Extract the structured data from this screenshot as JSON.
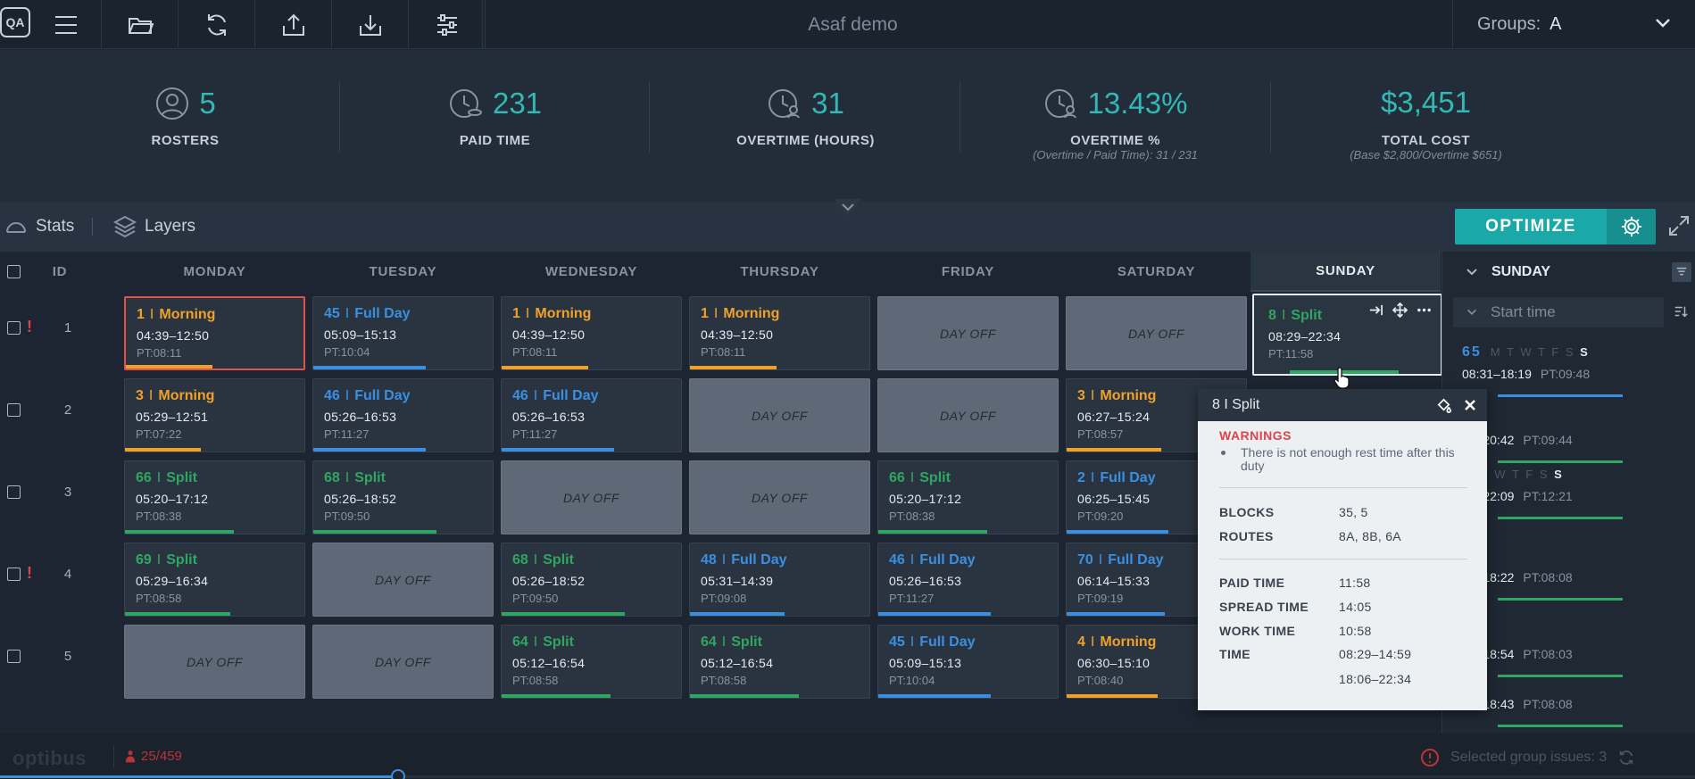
{
  "toolbar": {
    "logo": "QA",
    "title": "Asaf demo",
    "groups_label": "Groups:",
    "groups_value": "A"
  },
  "stats": [
    {
      "value": "5",
      "label": "ROSTERS",
      "sub": ""
    },
    {
      "value": "231",
      "label": "PAID TIME",
      "sub": ""
    },
    {
      "value": "31",
      "label": "OVERTIME (HOURS)",
      "sub": ""
    },
    {
      "value": "13.43%",
      "label": "OVERTIME %",
      "sub": "(Overtime / Paid Time): 31 / 231"
    },
    {
      "value": "$3,451",
      "label": "TOTAL COST",
      "sub": "(Base $2,800/Overtime $651)"
    }
  ],
  "subbar": {
    "stats": "Stats",
    "layers": "Layers",
    "optimize": "OPTIMIZE"
  },
  "grid": {
    "id_header": "ID",
    "days": [
      "MONDAY",
      "TUESDAY",
      "WEDNESDAY",
      "THURSDAY",
      "FRIDAY",
      "SATURDAY",
      "SUNDAY"
    ],
    "day_off_label": "DAY OFF",
    "rows": [
      {
        "id": "1",
        "warn": true,
        "cells": [
          {
            "type": "duty",
            "color": "orange",
            "num": "1",
            "name": "Morning",
            "time": "04:39–12:50",
            "pt": "PT:08:11",
            "bars": [
              {
                "c": "#f0a12a",
                "w": 0.48
              }
            ]
          },
          {
            "type": "duty",
            "color": "blue",
            "num": "45",
            "name": "Full Day",
            "time": "05:09–15:13",
            "pt": "PT:10:04",
            "bars": [
              {
                "c": "#3b8fe0",
                "w": 0.62
              }
            ]
          },
          {
            "type": "duty",
            "color": "orange",
            "num": "1",
            "name": "Morning",
            "time": "04:39–12:50",
            "pt": "PT:08:11",
            "bars": [
              {
                "c": "#f0a12a",
                "w": 0.48
              }
            ]
          },
          {
            "type": "duty",
            "color": "orange",
            "num": "1",
            "name": "Morning",
            "time": "04:39–12:50",
            "pt": "PT:08:11",
            "bars": [
              {
                "c": "#f0a12a",
                "w": 0.48
              }
            ]
          },
          {
            "type": "off"
          },
          {
            "type": "off"
          },
          {
            "type": "duty",
            "color": "green",
            "num": "8",
            "name": "Split",
            "time": "08:29–22:34",
            "pt": "PT:11:58",
            "bars": [
              {
                "c": "#2fa661",
                "w": 0.6
              }
            ]
          }
        ]
      },
      {
        "id": "2",
        "warn": false,
        "cells": [
          {
            "type": "duty",
            "color": "orange",
            "num": "3",
            "name": "Morning",
            "time": "05:29–12:51",
            "pt": "PT:07:22",
            "bars": [
              {
                "c": "#f0a12a",
                "w": 0.42
              }
            ]
          },
          {
            "type": "duty",
            "color": "blue",
            "num": "46",
            "name": "Full Day",
            "time": "05:26–16:53",
            "pt": "PT:11:27",
            "bars": [
              {
                "c": "#3b8fe0",
                "w": 0.62
              }
            ]
          },
          {
            "type": "duty",
            "color": "blue",
            "num": "46",
            "name": "Full Day",
            "time": "05:26–16:53",
            "pt": "PT:11:27",
            "bars": [
              {
                "c": "#3b8fe0",
                "w": 0.62
              }
            ]
          },
          {
            "type": "off"
          },
          {
            "type": "off"
          },
          {
            "type": "duty",
            "color": "orange",
            "num": "3",
            "name": "Morning",
            "time": "06:27–15:24",
            "pt": "PT:08:57",
            "bars": [
              {
                "c": "#f0a12a",
                "w": 0.52
              }
            ]
          },
          {
            "type": "hidden"
          }
        ]
      },
      {
        "id": "3",
        "warn": false,
        "cells": [
          {
            "type": "duty",
            "color": "green",
            "num": "66",
            "name": "Split",
            "time": "05:20–17:12",
            "pt": "PT:08:38",
            "bars": [
              {
                "c": "#2fa661",
                "w": 0.6
              }
            ]
          },
          {
            "type": "duty",
            "color": "green",
            "num": "68",
            "name": "Split",
            "time": "05:26–18:52",
            "pt": "PT:09:50",
            "bars": [
              {
                "c": "#2fa661",
                "w": 0.68
              }
            ]
          },
          {
            "type": "off"
          },
          {
            "type": "off"
          },
          {
            "type": "duty",
            "color": "green",
            "num": "66",
            "name": "Split",
            "time": "05:20–17:12",
            "pt": "PT:08:38",
            "bars": [
              {
                "c": "#2fa661",
                "w": 0.6
              }
            ]
          },
          {
            "type": "duty",
            "color": "blue",
            "num": "2",
            "name": "Full Day",
            "time": "06:25–15:45",
            "pt": "PT:09:20",
            "bars": [
              {
                "c": "#3b8fe0",
                "w": 0.56
              }
            ]
          },
          {
            "type": "hidden"
          }
        ]
      },
      {
        "id": "4",
        "warn": true,
        "cells": [
          {
            "type": "duty",
            "color": "green",
            "num": "69",
            "name": "Split",
            "time": "05:29–16:34",
            "pt": "PT:08:58",
            "bars": [
              {
                "c": "#2fa661",
                "w": 0.58
              }
            ]
          },
          {
            "type": "off"
          },
          {
            "type": "duty",
            "color": "green",
            "num": "68",
            "name": "Split",
            "time": "05:26–18:52",
            "pt": "PT:09:50",
            "bars": [
              {
                "c": "#2fa661",
                "w": 0.68
              }
            ]
          },
          {
            "type": "duty",
            "color": "blue",
            "num": "48",
            "name": "Full Day",
            "time": "05:31–14:39",
            "pt": "PT:09:08",
            "bars": [
              {
                "c": "#3b8fe0",
                "w": 0.52
              }
            ]
          },
          {
            "type": "duty",
            "color": "blue",
            "num": "46",
            "name": "Full Day",
            "time": "05:26–16:53",
            "pt": "PT:11:27",
            "bars": [
              {
                "c": "#3b8fe0",
                "w": 0.62
              }
            ]
          },
          {
            "type": "duty",
            "color": "blue",
            "num": "70",
            "name": "Full Day",
            "time": "06:14–15:33",
            "pt": "PT:09:19",
            "bars": [
              {
                "c": "#3b8fe0",
                "w": 0.54
              }
            ]
          },
          {
            "type": "hidden"
          }
        ]
      },
      {
        "id": "5",
        "warn": false,
        "cells": [
          {
            "type": "off"
          },
          {
            "type": "off"
          },
          {
            "type": "duty",
            "color": "green",
            "num": "64",
            "name": "Split",
            "time": "05:12–16:54",
            "pt": "PT:08:58",
            "bars": [
              {
                "c": "#2fa661",
                "w": 0.6
              }
            ]
          },
          {
            "type": "duty",
            "color": "green",
            "num": "64",
            "name": "Split",
            "time": "05:12–16:54",
            "pt": "PT:08:58",
            "bars": [
              {
                "c": "#2fa661",
                "w": 0.6
              }
            ]
          },
          {
            "type": "duty",
            "color": "blue",
            "num": "45",
            "name": "Full Day",
            "time": "05:09–15:13",
            "pt": "PT:10:04",
            "bars": [
              {
                "c": "#3b8fe0",
                "w": 0.62
              }
            ]
          },
          {
            "type": "duty",
            "color": "orange",
            "num": "4",
            "name": "Morning",
            "time": "06:30–15:10",
            "pt": "PT:08:40",
            "bars": [
              {
                "c": "#f0a12a",
                "w": 0.5
              }
            ]
          },
          {
            "type": "hidden"
          }
        ]
      }
    ]
  },
  "right_panel": {
    "title": "SUNDAY",
    "start_placeholder": "Start time",
    "items": [
      {
        "id": "65",
        "days": "M T W T F S",
        "sel_day": "S",
        "time": "08:31–18:19",
        "pt": "PT:09:48",
        "bar": "#3b8fe0"
      },
      {
        "id": "",
        "days": "",
        "sel_day": "S",
        "time": "32–20:42",
        "pt": "PT:09:44",
        "bar": "#2fa661"
      },
      {
        "id": "",
        "days": "I T W T F S",
        "sel_day": "S",
        "time": "36–22:09",
        "pt": "PT:12:21",
        "bar": "#2fa661"
      },
      {
        "id": "",
        "days": "",
        "sel_day": "S",
        "time": "38–18:22",
        "pt": "PT:08:08",
        "bar": "#2fa661"
      },
      {
        "id": "",
        "days": "",
        "sel_day": "S",
        "time": "39–18:54",
        "pt": "PT:08:03",
        "bar": "#2fa661"
      },
      {
        "id": "",
        "days": "",
        "sel_day": "S",
        "time": "41–18:43",
        "pt": "PT:08:08",
        "bar": "#2fa661"
      }
    ]
  },
  "popup": {
    "title": "8 I Split",
    "warnings_label": "WARNINGS",
    "warning": "There is not enough rest time after this duty",
    "blocks_label": "BLOCKS",
    "blocks": "35, 5",
    "routes_label": "ROUTES",
    "routes": "8A, 8B, 6A",
    "paid_label": "PAID TIME",
    "paid": "11:58",
    "spread_label": "SPREAD TIME",
    "spread": "14:05",
    "work_label": "WORK TIME",
    "work": "10:58",
    "time_label": "TIME",
    "time1": "08:29–14:59",
    "time2": "18:06–22:34"
  },
  "footer": {
    "brand": "optibus",
    "count": "25/459",
    "issues": "Selected group issues: 3",
    "progress": 0.235
  }
}
